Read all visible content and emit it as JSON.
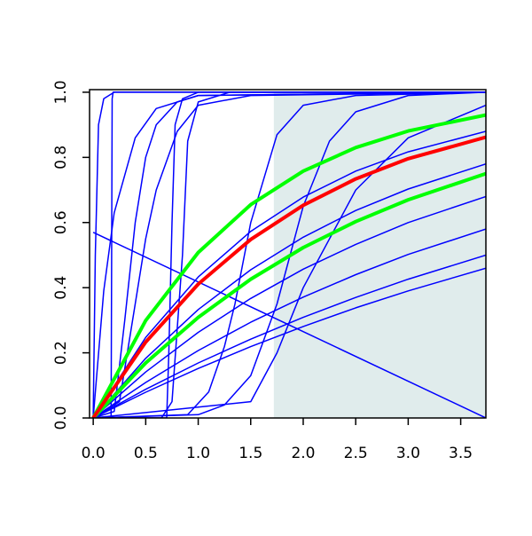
{
  "chart_data": {
    "type": "line",
    "xlim": [
      -0.035,
      3.74
    ],
    "ylim": [
      0,
      1.008
    ],
    "xticks": [
      {
        "value": 0,
        "label": "0.0"
      },
      0.5,
      {
        "value": 1,
        "label": "1.0"
      },
      1.5,
      {
        "value": 2,
        "label": "2.0"
      },
      2.5,
      {
        "value": 3,
        "label": "3.0"
      },
      3.5
    ],
    "yticks": [
      {
        "value": 0,
        "label": "0.0"
      },
      0.2,
      0.4,
      0.6,
      0.8,
      {
        "value": 1,
        "label": "1.0"
      }
    ],
    "shade": {
      "x": [
        1.72,
        3.74
      ],
      "y": [
        0,
        1
      ],
      "color": "#e0ecec"
    },
    "series": [
      {
        "color": "#0000ff",
        "line_width": 1.5,
        "x": [
          0,
          0.5,
          1,
          1.5,
          2,
          2.5,
          3,
          3.74
        ],
        "values": [
          0,
          0.079,
          0.152,
          0.219,
          0.281,
          0.338,
          0.39,
          0.46
        ]
      },
      {
        "color": "#0000ff",
        "line_width": 1.5,
        "x": [
          0,
          0.5,
          1,
          1.5,
          2,
          2.5,
          3,
          3.74
        ],
        "values": [
          0,
          0.088,
          0.169,
          0.242,
          0.309,
          0.37,
          0.426,
          0.5
        ]
      },
      {
        "color": "#0000ff",
        "line_width": 1.5,
        "x": [
          0,
          0.5,
          1,
          1.5,
          2,
          2.5,
          3,
          3.74
        ],
        "values": [
          0,
          0.109,
          0.207,
          0.294,
          0.371,
          0.44,
          0.502,
          0.58
        ]
      },
      {
        "color": "#0000ff",
        "line_width": 1.5,
        "x": [
          0,
          0.5,
          1,
          1.5,
          2,
          2.5,
          3,
          3.74
        ],
        "values": [
          0,
          0.141,
          0.263,
          0.367,
          0.457,
          0.533,
          0.6,
          0.68
        ]
      },
      {
        "color": "#0000ff",
        "line_width": 1.5,
        "x": [
          0,
          0.5,
          1,
          1.5,
          2,
          2.5,
          3,
          3.74
        ],
        "values": [
          0,
          0.183,
          0.333,
          0.455,
          0.555,
          0.637,
          0.703,
          0.78
        ]
      },
      {
        "color": "#0000ff",
        "line_width": 1.5,
        "x": [
          0,
          0.5,
          1,
          1.5,
          2,
          2.5,
          3,
          3.74
        ],
        "values": [
          0,
          0.247,
          0.433,
          0.573,
          0.678,
          0.758,
          0.817,
          0.88
        ]
      },
      {
        "color": "#0000ff",
        "line_width": 1.5,
        "x": [
          0,
          1,
          1.25,
          1.5,
          1.75,
          2,
          2.25,
          2.5,
          3,
          3.74
        ],
        "values": [
          0,
          0.01,
          0.04,
          0.13,
          0.35,
          0.65,
          0.85,
          0.94,
          0.99,
          1
        ]
      },
      {
        "color": "#0000ff",
        "line_width": 1.5,
        "x": [
          0,
          0.9,
          1.1,
          1.25,
          1.35,
          1.5,
          1.75,
          2,
          2.5,
          3.74
        ],
        "values": [
          0,
          0.01,
          0.08,
          0.22,
          0.35,
          0.6,
          0.87,
          0.96,
          0.99,
          1
        ]
      },
      {
        "color": "#0000ff",
        "line_width": 1.5,
        "x": [
          0,
          1.5,
          1.75,
          2,
          2.5,
          3,
          3.74
        ],
        "values": [
          0,
          0.05,
          0.2,
          0.4,
          0.7,
          0.86,
          0.96
        ]
      },
      {
        "color": "#0000ff",
        "line_width": 1.5,
        "x": [
          0,
          0.7,
          0.72,
          0.75,
          0.78,
          0.85,
          1,
          3.74
        ],
        "values": [
          0,
          0,
          0.2,
          0.6,
          0.9,
          0.98,
          1,
          1
        ]
      },
      {
        "color": "#0000ff",
        "line_width": 1.5,
        "x": [
          0,
          0.65,
          0.75,
          0.85,
          0.9,
          1,
          1.3,
          3.74
        ],
        "values": [
          0,
          0,
          0.05,
          0.5,
          0.85,
          0.97,
          1,
          1
        ]
      },
      {
        "color": "#0000ff",
        "line_width": 1.5,
        "x": [
          0,
          0.17,
          0.18,
          0.19,
          3.74
        ],
        "values": [
          0,
          0,
          0.98,
          1,
          1
        ]
      },
      {
        "color": "#0000ff",
        "line_width": 1.5,
        "x": [
          0,
          0.02,
          0.05,
          0.1,
          0.2,
          3.74
        ],
        "values": [
          0,
          0.5,
          0.9,
          0.98,
          1,
          1
        ]
      },
      {
        "color": "#0000ff",
        "line_width": 1.5,
        "x": [
          0,
          0.1,
          0.2,
          0.4,
          0.6,
          1,
          3.74
        ],
        "values": [
          0,
          0.39,
          0.63,
          0.86,
          0.95,
          0.99,
          1
        ]
      },
      {
        "color": "#0000ff",
        "line_width": 1.5,
        "x": [
          0,
          0.2,
          0.3,
          0.4,
          0.5,
          0.6,
          0.8,
          1,
          3.74
        ],
        "values": [
          0,
          0.02,
          0.3,
          0.6,
          0.8,
          0.9,
          0.97,
          0.99,
          1
        ]
      },
      {
        "color": "#0000ff",
        "line_width": 1.5,
        "x": [
          0,
          0.25,
          0.4,
          0.5,
          0.6,
          0.8,
          1,
          1.5,
          3.74
        ],
        "values": [
          0,
          0.05,
          0.35,
          0.55,
          0.7,
          0.88,
          0.96,
          0.99,
          1
        ]
      },
      {
        "color": "#0000ff",
        "line_width": 1.5,
        "x": [
          0,
          3.74
        ],
        "values": [
          0.57,
          0
        ]
      },
      {
        "color": "#00ff00",
        "line_width": 4,
        "x": [
          0,
          0.5,
          1,
          1.5,
          2,
          2.5,
          3,
          3.74
        ],
        "values": [
          0,
          0.299,
          0.508,
          0.655,
          0.758,
          0.83,
          0.881,
          0.93
        ]
      },
      {
        "color": "#00ff00",
        "line_width": 4,
        "x": [
          0,
          0.5,
          1,
          1.5,
          2,
          2.5,
          3,
          3.74
        ],
        "values": [
          0,
          0.169,
          0.309,
          0.426,
          0.523,
          0.603,
          0.67,
          0.75
        ]
      },
      {
        "color": "#ff0000",
        "line_width": 4,
        "x": [
          0,
          0.5,
          1,
          1.5,
          2,
          2.5,
          3,
          3.74
        ],
        "values": [
          0,
          0.233,
          0.411,
          0.548,
          0.653,
          0.734,
          0.796,
          0.862
        ]
      }
    ]
  }
}
